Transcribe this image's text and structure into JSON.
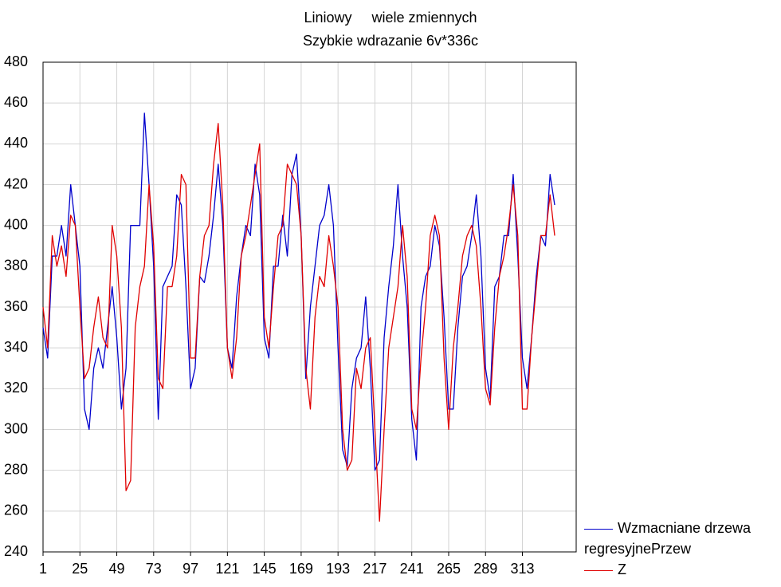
{
  "chart_data": {
    "type": "line",
    "title": "Liniowy     wiele zmiennych",
    "subtitle": "Szybkie wdrazanie 6v*336c",
    "x": [
      1,
      4,
      7,
      10,
      13,
      16,
      19,
      22,
      25,
      28,
      31,
      34,
      37,
      40,
      43,
      46,
      49,
      52,
      55,
      58,
      61,
      64,
      67,
      70,
      73,
      76,
      79,
      82,
      85,
      88,
      91,
      94,
      97,
      100,
      103,
      106,
      109,
      112,
      115,
      118,
      121,
      124,
      127,
      130,
      133,
      136,
      139,
      142,
      145,
      148,
      151,
      154,
      157,
      160,
      163,
      166,
      169,
      172,
      175,
      178,
      181,
      184,
      187,
      190,
      193,
      196,
      199,
      202,
      205,
      208,
      211,
      214,
      217,
      220,
      223,
      226,
      229,
      232,
      235,
      238,
      241,
      244,
      247,
      250,
      253,
      256,
      259,
      262,
      265,
      268,
      271,
      274,
      277,
      280,
      283,
      286,
      289,
      292,
      295,
      298,
      301,
      304,
      307,
      310,
      313,
      316,
      319,
      322,
      325,
      328,
      331,
      334
    ],
    "series": [
      {
        "name": "Wzmacniane drzewa regresyjnePrzew",
        "color": "#0000cc",
        "values": [
          350,
          335,
          385,
          385,
          400,
          385,
          420,
          400,
          380,
          310,
          300,
          330,
          340,
          330,
          350,
          370,
          345,
          310,
          330,
          400,
          400,
          400,
          455,
          420,
          380,
          305,
          370,
          375,
          380,
          415,
          410,
          370,
          320,
          330,
          375,
          372,
          385,
          405,
          430,
          400,
          340,
          330,
          365,
          385,
          400,
          395,
          430,
          415,
          345,
          335,
          380,
          380,
          405,
          385,
          425,
          435,
          395,
          325,
          360,
          380,
          400,
          405,
          420,
          400,
          340,
          290,
          282,
          320,
          335,
          340,
          365,
          330,
          280,
          285,
          345,
          370,
          390,
          420,
          385,
          360,
          305,
          285,
          360,
          375,
          380,
          400,
          390,
          355,
          310,
          310,
          350,
          375,
          380,
          395,
          415,
          385,
          330,
          315,
          370,
          375,
          395,
          395,
          425,
          385,
          335,
          320,
          345,
          375,
          395,
          390,
          425,
          410
        ]
      },
      {
        "name": "Z",
        "color": "#e00000",
        "values": [
          360,
          340,
          395,
          380,
          390,
          375,
          405,
          400,
          360,
          325,
          330,
          350,
          365,
          345,
          340,
          400,
          385,
          350,
          270,
          275,
          350,
          370,
          380,
          420,
          390,
          325,
          320,
          370,
          370,
          385,
          425,
          420,
          335,
          335,
          375,
          395,
          400,
          430,
          450,
          410,
          340,
          325,
          345,
          385,
          395,
          410,
          425,
          440,
          355,
          340,
          370,
          395,
          400,
          430,
          425,
          420,
          395,
          330,
          310,
          355,
          375,
          370,
          395,
          380,
          360,
          300,
          280,
          285,
          330,
          320,
          340,
          345,
          300,
          255,
          300,
          340,
          355,
          370,
          400,
          375,
          310,
          300,
          335,
          360,
          395,
          405,
          395,
          335,
          300,
          340,
          360,
          385,
          395,
          400,
          390,
          360,
          320,
          312,
          350,
          375,
          385,
          400,
          420,
          395,
          310,
          310,
          345,
          370,
          395,
          395,
          415,
          395
        ]
      }
    ],
    "xlim": [
      1,
      348
    ],
    "xticks": [
      1,
      25,
      49,
      73,
      97,
      121,
      145,
      169,
      193,
      217,
      241,
      265,
      289,
      313
    ],
    "ylim": [
      240,
      480
    ],
    "yticks": [
      240,
      260,
      280,
      300,
      320,
      340,
      360,
      380,
      400,
      420,
      440,
      460,
      480
    ],
    "grid": true
  }
}
